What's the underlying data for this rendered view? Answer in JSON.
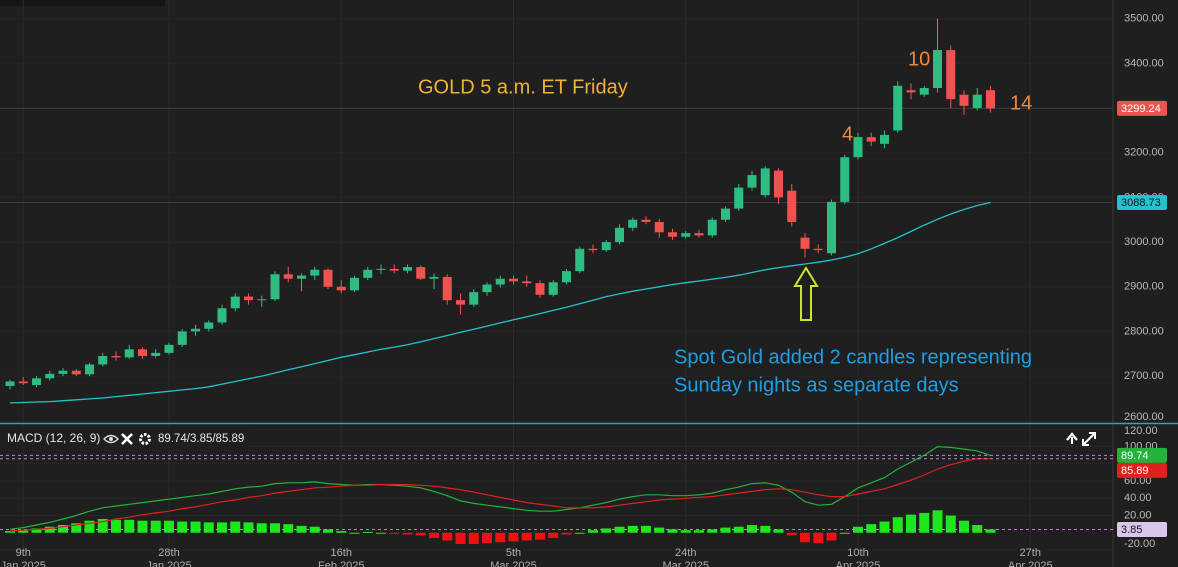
{
  "chart_data": [
    {
      "type": "candlestick",
      "title": "GOLD 5 a.m. ET Friday",
      "title_color": "#efb233",
      "annotations": [
        "10",
        "4",
        "14"
      ],
      "annotation_color": "#f08a3a",
      "note": [
        "Spot Gold added 2 candles representing",
        "Sunday nights as separate days"
      ],
      "note_color": "#1f9fe3",
      "categories": [
        null,
        "9th\nJan 2025",
        null,
        null,
        null,
        null,
        null,
        null,
        null,
        null,
        null,
        null,
        "28th\nJan 2025",
        null,
        null,
        null,
        null,
        null,
        null,
        null,
        null,
        null,
        null,
        null,
        null,
        "16th\nFeb 2025",
        null,
        null,
        null,
        null,
        null,
        null,
        null,
        null,
        null,
        null,
        null,
        null,
        "5th\nMar 2025",
        null,
        null,
        null,
        null,
        null,
        null,
        null,
        null,
        null,
        null,
        null,
        null,
        "24th\nMar 2025",
        null,
        null,
        null,
        null,
        null,
        null,
        null,
        null,
        null,
        null,
        null,
        null,
        "10th\nApr 2025",
        null,
        null,
        null,
        null,
        null,
        null,
        null,
        null,
        null,
        null,
        null,
        null,
        "27th\nApr 2025"
      ],
      "open": [
        2678,
        2688,
        2680,
        2695,
        2705,
        2712,
        2704,
        2726,
        2745,
        2742,
        2760,
        2745,
        2752,
        2770,
        2800,
        2806,
        2820,
        2852,
        2878,
        2870,
        2872,
        2928,
        2918,
        2925,
        2938,
        2900,
        2892,
        2920,
        2938,
        2940,
        2936,
        2944,
        2918,
        2922,
        2870,
        2860,
        2888,
        2905,
        2918,
        2912,
        2908,
        2882,
        2910,
        2935,
        2985,
        2982,
        3000,
        3032,
        3050,
        3045,
        3022,
        3012,
        3020,
        3015,
        3050,
        3075,
        3122,
        3105,
        3160,
        3115,
        3010,
        2985,
        2975,
        3090,
        3190,
        3235,
        3220,
        3250,
        3340,
        3330,
        3345,
        3430,
        3330,
        3300,
        3340,
        null,
        null,
        null
      ],
      "high": [
        2692,
        2698,
        2700,
        2712,
        2718,
        2716,
        2730,
        2752,
        2755,
        2770,
        2765,
        2760,
        2775,
        2805,
        2815,
        2825,
        2860,
        2885,
        2885,
        2880,
        2935,
        2945,
        2930,
        2945,
        2942,
        2915,
        2925,
        2945,
        2950,
        2950,
        2950,
        2948,
        2930,
        2928,
        2885,
        2895,
        2910,
        2925,
        2925,
        2925,
        2915,
        2915,
        2940,
        2990,
        2995,
        3005,
        3040,
        3055,
        3058,
        3052,
        3030,
        3025,
        3028,
        3055,
        3080,
        3130,
        3160,
        3170,
        3165,
        3130,
        3020,
        2995,
        3095,
        3195,
        3245,
        3245,
        3250,
        3360,
        3355,
        3350,
        3500,
        3440,
        3340,
        3345,
        3350,
        null,
        null,
        null
      ],
      "low": [
        2670,
        2680,
        2675,
        2690,
        2700,
        2700,
        2700,
        2722,
        2735,
        2738,
        2738,
        2740,
        2748,
        2765,
        2790,
        2800,
        2815,
        2845,
        2860,
        2855,
        2868,
        2910,
        2890,
        2915,
        2895,
        2885,
        2888,
        2915,
        2928,
        2930,
        2930,
        2915,
        2895,
        2860,
        2838,
        2855,
        2880,
        2898,
        2905,
        2900,
        2875,
        2878,
        2905,
        2930,
        2975,
        2978,
        2995,
        3025,
        3040,
        3010,
        3005,
        3008,
        3010,
        3010,
        3045,
        3070,
        3115,
        3100,
        3085,
        3035,
        2965,
        2975,
        2970,
        3085,
        3185,
        3215,
        3210,
        3245,
        3320,
        3325,
        3335,
        3300,
        3285,
        3295,
        3290,
        null,
        null,
        null
      ],
      "close": [
        2688,
        2684,
        2695,
        2705,
        2712,
        2704,
        2726,
        2745,
        2742,
        2760,
        2745,
        2752,
        2770,
        2800,
        2806,
        2820,
        2852,
        2878,
        2870,
        2872,
        2928,
        2918,
        2925,
        2938,
        2900,
        2892,
        2920,
        2938,
        2940,
        2936,
        2944,
        2918,
        2922,
        2870,
        2860,
        2888,
        2905,
        2918,
        2912,
        2908,
        2882,
        2910,
        2935,
        2985,
        2982,
        3000,
        3032,
        3050,
        3045,
        3022,
        3012,
        3020,
        3015,
        3050,
        3075,
        3122,
        3150,
        3165,
        3100,
        3045,
        2985,
        2982,
        3090,
        3190,
        3235,
        3225,
        3240,
        3350,
        3335,
        3345,
        3430,
        3320,
        3305,
        3330,
        3299.24,
        null,
        null,
        null
      ],
      "up_color": "#2dbd82",
      "down_color": "#ef5350",
      "series": [
        {
          "color": "#22c3cf",
          "values": [
            2640,
            2641,
            2642,
            2643,
            2645,
            2647,
            2649,
            2651,
            2654,
            2657,
            2660,
            2663,
            2666,
            2669,
            2672,
            2676,
            2682,
            2688,
            2694,
            2700,
            2707,
            2714,
            2721,
            2728,
            2735,
            2742,
            2748,
            2754,
            2760,
            2765,
            2770,
            2777,
            2784,
            2791,
            2798,
            2805,
            2812,
            2819,
            2826,
            2833,
            2840,
            2847,
            2854,
            2862,
            2870,
            2878,
            2884,
            2890,
            2895,
            2900,
            2905,
            2909,
            2913,
            2917,
            2921,
            2926,
            2932,
            2938,
            2943,
            2947,
            2951,
            2955,
            2960,
            2966,
            2974,
            2985,
            2997,
            3010,
            3024,
            3038,
            3051,
            3063,
            3073,
            3082,
            3088.73,
            null,
            null,
            null
          ]
        }
      ],
      "ylim": [
        2595,
        3542
      ],
      "yticks": [
        {
          "value": 3500,
          "label": "3500.00"
        },
        {
          "value": 3400,
          "label": "3400.00"
        },
        {
          "value": 3300,
          "label": "3300.00"
        },
        {
          "value": 3200,
          "label": "3200.00"
        },
        {
          "value": 3100,
          "label": "3100.00"
        },
        {
          "value": 3000,
          "label": "3000.00"
        },
        {
          "value": 2900,
          "label": "2900.00"
        },
        {
          "value": 2800,
          "label": "2800.00"
        },
        {
          "value": 2700,
          "label": "2700.00"
        },
        {
          "value": 2600,
          "label": "2600.00"
        }
      ],
      "grid": true
    },
    {
      "type": "macd",
      "title": "MACD (12, 26, 9)",
      "readout": "89.74/3.85/85.89",
      "series": [
        {
          "color": "#21b33a",
          "values": [
            4,
            6,
            9,
            12,
            16,
            20,
            25,
            29,
            31,
            33,
            35,
            37,
            39,
            41,
            43,
            45,
            48,
            51,
            53,
            54,
            57,
            58,
            58,
            59,
            57,
            56,
            55,
            56,
            56,
            55,
            54,
            52,
            48,
            43,
            37,
            34,
            32,
            30,
            28,
            26,
            25,
            25,
            27,
            29,
            32,
            35,
            39,
            42,
            44,
            44,
            43,
            43,
            44,
            46,
            50,
            53,
            57,
            58,
            55,
            47,
            36,
            32,
            33,
            42,
            52,
            58,
            64,
            74,
            82,
            90,
            100,
            99,
            97,
            95,
            89.74,
            null,
            null,
            null
          ]
        },
        {
          "color": "#e0201c",
          "values": [
            2,
            3,
            4,
            5,
            7,
            9,
            11,
            13,
            16,
            18,
            21,
            23,
            25,
            28,
            30,
            33,
            36,
            38,
            41,
            43,
            46,
            48,
            50,
            52,
            53,
            54,
            55,
            55,
            56,
            56,
            56,
            55,
            54,
            52,
            50,
            47,
            44,
            41,
            38,
            35,
            33,
            31,
            29,
            29,
            29,
            30,
            32,
            34,
            36,
            38,
            39,
            40,
            41,
            42,
            44,
            46,
            48,
            50,
            51,
            50,
            47,
            44,
            42,
            42,
            45,
            48,
            51,
            56,
            61,
            67,
            74,
            79,
            83,
            86,
            85.89,
            null,
            null,
            null
          ]
        }
      ],
      "histogram": {
        "up_color": "#1ee61e",
        "down_color": "#f01010",
        "values": [
          2,
          3,
          5,
          7,
          9,
          11,
          14,
          16,
          15,
          15,
          14,
          14,
          14,
          13,
          13,
          12,
          12,
          13,
          12,
          11,
          11,
          10,
          8,
          7,
          4,
          2,
          0,
          1,
          0,
          -1,
          -2,
          -3,
          -6,
          -9,
          -13,
          -13,
          -12,
          -11,
          -10,
          -9,
          -8,
          -6,
          -2,
          0,
          3,
          5,
          7,
          8,
          8,
          6,
          4,
          3,
          3,
          4,
          6,
          7,
          9,
          8,
          4,
          -3,
          -11,
          -12,
          -9,
          0,
          7,
          10,
          13,
          18,
          21,
          23,
          26,
          20,
          14,
          9,
          3.85,
          null,
          null,
          null
        ]
      },
      "ylim": [
        -20,
        125
      ],
      "yticks": [
        {
          "value": 120,
          "label": "120.00"
        },
        {
          "value": 100,
          "label": "100.00"
        },
        {
          "value": 80,
          "label": "80.00"
        },
        {
          "value": 60,
          "label": "60.00"
        },
        {
          "value": 40,
          "label": "40.00"
        },
        {
          "value": 20,
          "label": "20.00"
        },
        {
          "value": -20,
          "label": "-20.00"
        }
      ],
      "grid": true
    }
  ]
}
